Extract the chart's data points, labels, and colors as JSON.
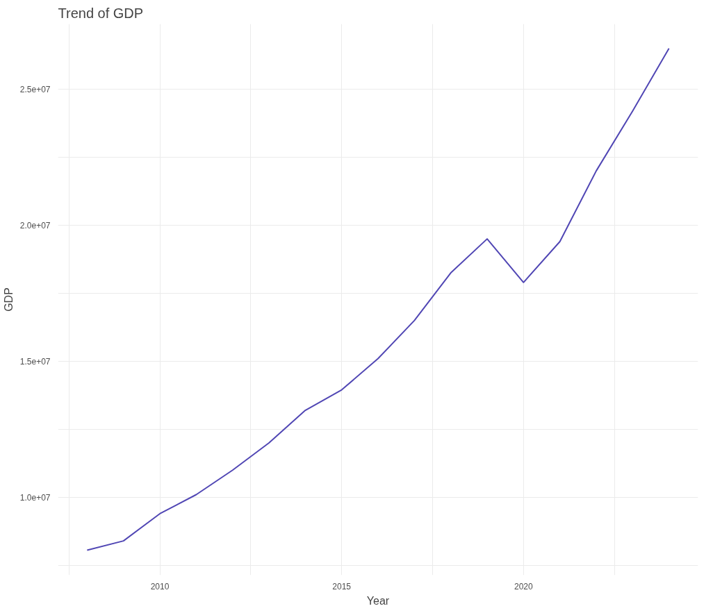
{
  "chart_data": {
    "type": "line",
    "title": "Trend of GDP",
    "xlabel": "Year",
    "ylabel": "GDP",
    "x": [
      2008,
      2009,
      2010,
      2011,
      2012,
      2013,
      2014,
      2015,
      2016,
      2017,
      2018,
      2019,
      2020,
      2021,
      2022,
      2023,
      2024
    ],
    "series": [
      {
        "color": "#5046b4",
        "values": [
          8060000,
          8400000,
          9400000,
          10100000,
          11000000,
          12000000,
          13200000,
          13950000,
          15100000,
          16500000,
          18250000,
          19500000,
          17900000,
          19400000,
          22000000,
          24200000,
          26500000
        ]
      }
    ],
    "xlim": [
      2007.2,
      2024.8
    ],
    "ylim": [
      7140000,
      27400000
    ],
    "xticks": [
      {
        "value": 2007.5,
        "label": null
      },
      2010,
      {
        "value": 2012.5,
        "label": null
      },
      2015,
      {
        "value": 2017.5,
        "label": null
      },
      2020,
      {
        "value": 2022.5,
        "label": null
      }
    ],
    "yticks": [
      {
        "value": 7500000,
        "label": null
      },
      {
        "value": 10000000,
        "label": "1.0e+07"
      },
      {
        "value": 12500000,
        "label": null
      },
      {
        "value": 15000000,
        "label": "1.5e+07"
      },
      {
        "value": 17500000,
        "label": null
      },
      {
        "value": 20000000,
        "label": "2.0e+07"
      },
      {
        "value": 22500000,
        "label": null
      },
      {
        "value": 25000000,
        "label": "2.5e+07"
      }
    ],
    "grid": true,
    "line_style": "solid",
    "marker": "none"
  }
}
